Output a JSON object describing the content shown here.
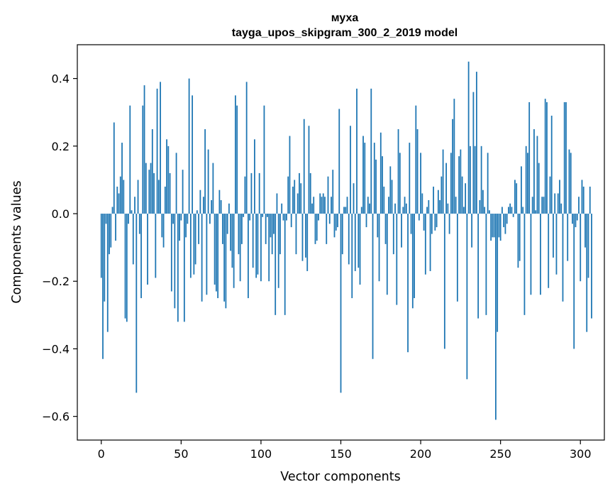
{
  "chart_data": {
    "type": "bar",
    "title_line1": "муха",
    "title_line2": "tayga_upos_skipgram_300_2_2019 model",
    "xlabel": "Vector components",
    "ylabel": "Components values",
    "xlim": [
      -15,
      315
    ],
    "ylim": [
      -0.67,
      0.5
    ],
    "xticks": [
      0,
      50,
      100,
      150,
      200,
      250,
      300
    ],
    "yticks": [
      -0.6,
      -0.4,
      -0.2,
      0.0,
      0.2,
      0.4
    ],
    "ytick_labels": [
      "−0.6",
      "−0.4",
      "−0.2",
      "0.0",
      "0.2",
      "0.4"
    ],
    "bar_color": "#1f77b4",
    "values": [
      -0.19,
      -0.43,
      -0.26,
      -0.03,
      -0.35,
      -0.12,
      -0.1,
      0.02,
      0.27,
      -0.08,
      0.08,
      0.06,
      0.11,
      0.21,
      0.1,
      -0.31,
      -0.32,
      -0.03,
      0.32,
      0.01,
      -0.15,
      0.05,
      -0.53,
      0.1,
      -0.06,
      -0.25,
      0.32,
      0.38,
      0.15,
      -0.21,
      0.13,
      0.15,
      0.25,
      0.12,
      -0.19,
      0.37,
      0.1,
      0.39,
      -0.07,
      -0.1,
      0.08,
      0.22,
      0.2,
      0.12,
      -0.23,
      -0.03,
      -0.28,
      0.18,
      -0.32,
      -0.08,
      -0.02,
      0.13,
      -0.32,
      -0.07,
      -0.03,
      0.4,
      -0.19,
      0.35,
      -0.18,
      -0.15,
      0.01,
      -0.09,
      0.07,
      -0.26,
      0.05,
      0.25,
      -0.24,
      0.19,
      -0.03,
      0.04,
      0.15,
      -0.21,
      -0.23,
      -0.25,
      0.07,
      0.04,
      -0.09,
      -0.26,
      -0.28,
      -0.06,
      0.03,
      -0.11,
      -0.16,
      -0.22,
      0.35,
      0.32,
      -0.12,
      -0.2,
      -0.09,
      -0.01,
      0.11,
      0.39,
      -0.25,
      -0.02,
      0.12,
      -0.16,
      0.22,
      -0.19,
      -0.18,
      0.12,
      -0.2,
      -0.01,
      0.32,
      -0.09,
      -0.01,
      -0.2,
      -0.07,
      -0.12,
      -0.06,
      -0.3,
      0.06,
      -0.22,
      -0.12,
      0.03,
      -0.02,
      -0.3,
      -0.02,
      0.11,
      0.23,
      -0.04,
      0.08,
      0.1,
      -0.12,
      0.06,
      0.12,
      0.09,
      -0.14,
      0.28,
      -0.13,
      -0.17,
      0.26,
      0.12,
      0.03,
      0.05,
      -0.09,
      -0.08,
      -0.02,
      0.06,
      0.05,
      0.06,
      0.05,
      -0.09,
      0.11,
      -0.03,
      0.05,
      0.13,
      -0.07,
      -0.05,
      -0.04,
      0.31,
      -0.53,
      -0.12,
      0.02,
      0.02,
      0.05,
      -0.15,
      0.26,
      -0.25,
      0.09,
      -0.17,
      0.37,
      -0.16,
      -0.21,
      0.02,
      0.23,
      0.21,
      -0.04,
      0.05,
      0.03,
      0.37,
      -0.43,
      0.21,
      0.16,
      -0.07,
      -0.2,
      0.24,
      0.17,
      0.08,
      -0.09,
      -0.24,
      0.05,
      0.14,
      0.1,
      -0.12,
      0.03,
      -0.27,
      0.25,
      0.18,
      -0.1,
      0.02,
      0.05,
      0.03,
      -0.41,
      0.21,
      -0.06,
      -0.28,
      -0.25,
      0.32,
      0.25,
      -0.02,
      0.18,
      0.06,
      -0.05,
      -0.18,
      0.02,
      0.04,
      -0.17,
      -0.06,
      0.08,
      -0.05,
      -0.04,
      0.07,
      0.04,
      0.11,
      0.19,
      -0.4,
      0.15,
      0.03,
      -0.06,
      0.18,
      0.28,
      0.34,
      0.05,
      -0.26,
      0.17,
      0.19,
      0.11,
      0.02,
      0.09,
      -0.49,
      0.45,
      0.2,
      -0.1,
      0.36,
      0.2,
      0.42,
      -0.31,
      0.04,
      0.2,
      0.07,
      0.02,
      -0.3,
      0.18,
      0.01,
      -0.08,
      -0.07,
      -0.07,
      -0.61,
      -0.35,
      -0.07,
      -0.08,
      0.02,
      -0.04,
      -0.06,
      -0.03,
      0.02,
      0.03,
      0.02,
      -0.01,
      0.1,
      0.09,
      -0.16,
      -0.14,
      0.14,
      0.02,
      -0.3,
      0.2,
      0.18,
      0.33,
      -0.24,
      0.05,
      0.25,
      0.01,
      0.23,
      0.15,
      -0.24,
      0.05,
      0.05,
      0.34,
      0.33,
      -0.22,
      0.11,
      0.29,
      -0.13,
      0.06,
      -0.18,
      0.06,
      0.1,
      0.03,
      -0.26,
      0.33,
      0.33,
      -0.14,
      0.19,
      0.18,
      -0.03,
      -0.4,
      -0.04,
      -0.02,
      0.05,
      -0.2,
      0.1,
      0.08,
      -0.1,
      -0.35,
      -0.19,
      0.08,
      -0.31
    ]
  }
}
